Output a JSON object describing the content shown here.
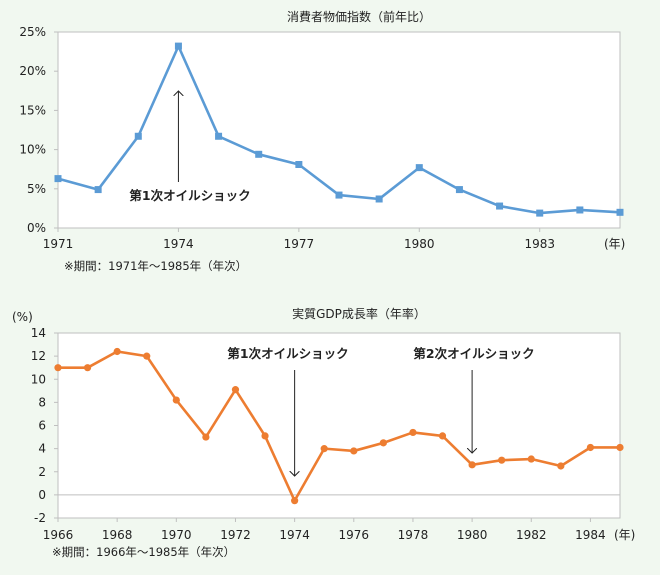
{
  "chart_data": [
    {
      "type": "line",
      "title": "消費者物価指数（前年比）",
      "x_unit_label": "(年)",
      "period_note": "※期間：1971年～1985年（年次）",
      "x": [
        1971,
        1972,
        1973,
        1974,
        1975,
        1976,
        1977,
        1978,
        1979,
        1980,
        1981,
        1982,
        1983,
        1984,
        1985
      ],
      "series": [
        {
          "values": [
            6.3,
            4.9,
            11.7,
            23.2,
            11.7,
            9.4,
            8.1,
            4.2,
            3.7,
            7.7,
            4.9,
            2.8,
            1.9,
            2.3,
            2.0
          ]
        }
      ],
      "xlim": [
        1971,
        1985
      ],
      "ylim": [
        0,
        25
      ],
      "y_ticks": [
        0,
        5,
        10,
        15,
        20,
        25
      ],
      "y_tick_labels": [
        "0%",
        "5%",
        "10%",
        "15%",
        "20%",
        "25%"
      ],
      "x_tick_labels": [
        "1971",
        "1974",
        "1977",
        "1980",
        "1983"
      ],
      "x_tick_values": [
        1971,
        1974,
        1977,
        1980,
        1983
      ],
      "annotations": [
        {
          "text": "第1次オイルショック",
          "x": 1974
        }
      ],
      "color": "#5b9bd5",
      "marker": "square",
      "grid": false
    },
    {
      "type": "line",
      "title": "実質GDP成長率（年率）",
      "ylabel": "(%)",
      "x_unit_label": "(年)",
      "period_note": "※期間：1966年～1985年（年次）",
      "x": [
        1966,
        1967,
        1968,
        1969,
        1970,
        1971,
        1972,
        1973,
        1974,
        1975,
        1976,
        1977,
        1978,
        1979,
        1980,
        1981,
        1982,
        1983,
        1984,
        1985
      ],
      "series": [
        {
          "values": [
            11.0,
            11.0,
            12.4,
            12.0,
            8.2,
            5.0,
            9.1,
            5.1,
            -0.5,
            4.0,
            3.8,
            4.5,
            5.4,
            5.1,
            2.6,
            3.0,
            3.1,
            2.5,
            4.1,
            4.1
          ]
        }
      ],
      "xlim": [
        1966,
        1985
      ],
      "ylim": [
        -2,
        14
      ],
      "y_ticks": [
        -2,
        0,
        2,
        4,
        6,
        8,
        10,
        12,
        14
      ],
      "y_tick_labels": [
        "-2",
        "0",
        "2",
        "4",
        "6",
        "8",
        "10",
        "12",
        "14"
      ],
      "x_tick_labels": [
        "1966",
        "1968",
        "1970",
        "1972",
        "1974",
        "1976",
        "1978",
        "1980",
        "1982",
        "1984"
      ],
      "x_tick_values": [
        1966,
        1968,
        1970,
        1972,
        1974,
        1976,
        1978,
        1980,
        1982,
        1984
      ],
      "annotations": [
        {
          "text": "第1次オイルショック",
          "x": 1974
        },
        {
          "text": "第2次オイルショック",
          "x": 1980
        }
      ],
      "color": "#ed7d31",
      "marker": "circle",
      "grid": false
    }
  ]
}
